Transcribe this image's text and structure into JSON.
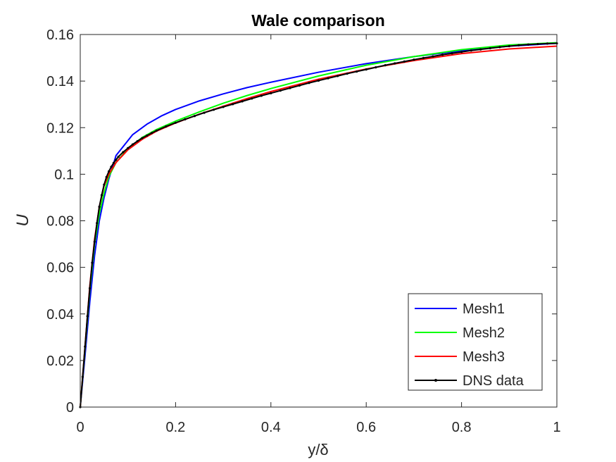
{
  "chart_data": {
    "type": "line",
    "title": "Wale comparison",
    "xlabel": "y/δ",
    "ylabel": "U",
    "xlim": [
      0,
      1
    ],
    "ylim": [
      0,
      0.16
    ],
    "xticks": [
      "0",
      "0.2",
      "0.4",
      "0.6",
      "0.8",
      "1"
    ],
    "yticks": [
      "0",
      "0.02",
      "0.04",
      "0.06",
      "0.08",
      "0.1",
      "0.12",
      "0.14",
      "0.16"
    ],
    "grid": false,
    "legend_position": "bottom-right",
    "series": [
      {
        "name": "Mesh1",
        "color": "#0000ff",
        "marker": "none",
        "x": [
          0,
          0.01,
          0.02,
          0.03,
          0.04,
          0.05,
          0.06,
          0.075,
          0.11,
          0.14,
          0.17,
          0.2,
          0.25,
          0.3,
          0.35,
          0.4,
          0.5,
          0.6,
          0.7,
          0.8,
          0.9,
          1.0
        ],
        "y": [
          0,
          0.022,
          0.045,
          0.065,
          0.08,
          0.09,
          0.098,
          0.108,
          0.117,
          0.1215,
          0.125,
          0.1278,
          0.1315,
          0.1345,
          0.1372,
          0.1395,
          0.1438,
          0.1475,
          0.1505,
          0.153,
          0.155,
          0.1562
        ]
      },
      {
        "name": "Mesh2",
        "color": "#00ff00",
        "marker": "none",
        "x": [
          0,
          0.01,
          0.02,
          0.03,
          0.04,
          0.05,
          0.06,
          0.075,
          0.1,
          0.13,
          0.16,
          0.2,
          0.25,
          0.3,
          0.35,
          0.4,
          0.5,
          0.6,
          0.7,
          0.8,
          0.9,
          1.0
        ],
        "y": [
          0,
          0.025,
          0.05,
          0.07,
          0.083,
          0.092,
          0.099,
          0.105,
          0.111,
          0.1158,
          0.1192,
          0.1228,
          0.1268,
          0.1305,
          0.1338,
          0.1368,
          0.1422,
          0.1468,
          0.1505,
          0.1535,
          0.1555,
          0.1565
        ]
      },
      {
        "name": "Mesh3",
        "color": "#ff0000",
        "marker": "none",
        "x": [
          0,
          0.01,
          0.02,
          0.03,
          0.04,
          0.05,
          0.06,
          0.075,
          0.1,
          0.13,
          0.16,
          0.2,
          0.25,
          0.3,
          0.35,
          0.4,
          0.5,
          0.6,
          0.7,
          0.8,
          0.9,
          1.0
        ],
        "y": [
          0,
          0.026,
          0.052,
          0.072,
          0.086,
          0.095,
          0.1,
          0.105,
          0.1105,
          0.115,
          0.1185,
          0.122,
          0.1258,
          0.1292,
          0.1325,
          0.1355,
          0.1408,
          0.1452,
          0.1488,
          0.1518,
          0.1538,
          0.155
        ]
      },
      {
        "name": "DNS data",
        "color": "#000000",
        "marker": "dot",
        "x": [
          0,
          0.005,
          0.01,
          0.015,
          0.02,
          0.025,
          0.03,
          0.035,
          0.04,
          0.045,
          0.05,
          0.055,
          0.06,
          0.065,
          0.07,
          0.075,
          0.08,
          0.09,
          0.1,
          0.11,
          0.12,
          0.13,
          0.14,
          0.15,
          0.16,
          0.18,
          0.2,
          0.22,
          0.24,
          0.26,
          0.28,
          0.3,
          0.32,
          0.34,
          0.36,
          0.38,
          0.4,
          0.42,
          0.44,
          0.46,
          0.48,
          0.5,
          0.52,
          0.54,
          0.56,
          0.58,
          0.6,
          0.62,
          0.64,
          0.66,
          0.68,
          0.7,
          0.72,
          0.74,
          0.76,
          0.78,
          0.8,
          0.82,
          0.84,
          0.86,
          0.88,
          0.9,
          0.92,
          0.94,
          0.96,
          0.98,
          1.0
        ],
        "y": [
          0,
          0.013,
          0.026,
          0.039,
          0.051,
          0.062,
          0.071,
          0.079,
          0.086,
          0.091,
          0.0955,
          0.0988,
          0.1012,
          0.1032,
          0.1048,
          0.1062,
          0.1075,
          0.1095,
          0.1112,
          0.1128,
          0.1142,
          0.1155,
          0.1166,
          0.1177,
          0.1187,
          0.1205,
          0.1221,
          0.1236,
          0.125,
          0.1264,
          0.1277,
          0.1289,
          0.1301,
          0.1313,
          0.1325,
          0.1337,
          0.1348,
          0.1359,
          0.137,
          0.1381,
          0.1392,
          0.1402,
          0.1412,
          0.1422,
          0.1432,
          0.1441,
          0.145,
          0.1459,
          0.1468,
          0.1476,
          0.1484,
          0.1492,
          0.1499,
          0.1506,
          0.1513,
          0.1519,
          0.1525,
          0.1531,
          0.1536,
          0.1541,
          0.1546,
          0.155,
          0.1554,
          0.1557,
          0.1559,
          0.1561,
          0.1562
        ]
      }
    ]
  }
}
